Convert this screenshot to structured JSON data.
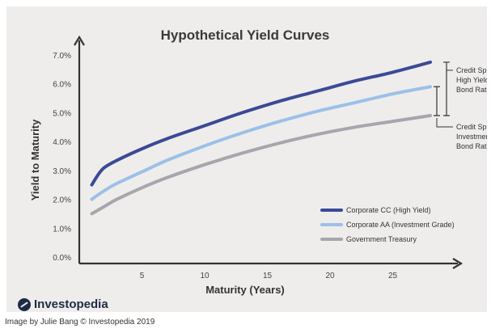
{
  "logo": {
    "text": "Investopedia",
    "icon": "investopedia-logo-icon"
  },
  "caption": "Image by Julie Bang © Investopedia 2019",
  "chart_data": {
    "type": "line",
    "title": "Hypothetical Yield Curves",
    "xlabel": "Maturity (Years)",
    "ylabel": "Yield to Maturity",
    "xlim": [
      0,
      30
    ],
    "ylim": [
      0,
      7.5
    ],
    "x_ticks": [
      5,
      10,
      15,
      20,
      25
    ],
    "y_ticks": [
      0,
      1,
      2,
      3,
      4,
      5,
      6,
      7
    ],
    "y_tick_labels": [
      "0.0%",
      "1.0%",
      "2.0%",
      "3.0%",
      "4.0%",
      "5.0%",
      "6.0%",
      "7.0%"
    ],
    "grid": false,
    "legend_position": "bottom-right",
    "series": [
      {
        "name": "Corporate CC (High Yield)",
        "color": "#3b4a96",
        "x": [
          1,
          1.5,
          2,
          3,
          5,
          7,
          10,
          13,
          16,
          19,
          22,
          25,
          28
        ],
        "y": [
          2.5,
          2.85,
          3.1,
          3.35,
          3.75,
          4.1,
          4.55,
          5.0,
          5.4,
          5.75,
          6.1,
          6.4,
          6.75
        ]
      },
      {
        "name": "Corporate AA (Investment Grade)",
        "color": "#9cc0e8",
        "x": [
          1,
          2,
          3,
          5,
          7,
          10,
          13,
          16,
          19,
          22,
          25,
          28
        ],
        "y": [
          2.0,
          2.3,
          2.55,
          2.95,
          3.35,
          3.85,
          4.3,
          4.7,
          5.05,
          5.35,
          5.65,
          5.9
        ]
      },
      {
        "name": "Government Treasury",
        "color": "#a6a6ad",
        "x": [
          1,
          2,
          3,
          5,
          7,
          10,
          13,
          16,
          19,
          22,
          25,
          28
        ],
        "y": [
          1.5,
          1.75,
          2.0,
          2.4,
          2.75,
          3.2,
          3.6,
          3.95,
          4.25,
          4.5,
          4.7,
          4.9
        ]
      }
    ],
    "annotations": [
      {
        "lines": [
          "Credit Spread for",
          "High Yield (Junk)",
          "Bond Rated CC"
        ]
      },
      {
        "lines": [
          "Credit Spread for",
          "Investment Grade",
          "Bond Rated AA"
        ]
      }
    ]
  }
}
